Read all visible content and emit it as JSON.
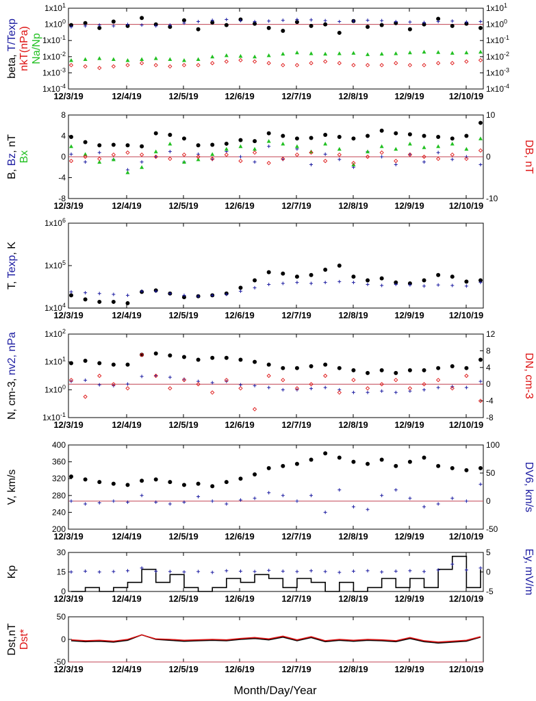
{
  "figure": {
    "xlabel": "Month/Day/Year",
    "x_tick_labels": [
      "12/3/19",
      "12/4/19",
      "12/5/19",
      "12/6/19",
      "12/7/19",
      "12/8/19",
      "12/9/19",
      "12/10/19"
    ],
    "colors": {
      "black": "#000000",
      "blue": "#1a1aa0",
      "red": "#dd1111",
      "green": "#22c022",
      "zero_line": "#c04050"
    }
  },
  "chart_data": [
    {
      "type": "scatter",
      "id": "beta",
      "scale": "log",
      "ylim": [
        0.0001,
        10
      ],
      "ylabel_left": [
        {
          "text": "beta, ",
          "color": "#000000"
        },
        {
          "text": "T/Texp",
          "color": "#1a1aa0"
        }
      ],
      "ylabel_left2": [
        {
          "text": "nkT(nPa)",
          "color": "#dd1111"
        }
      ],
      "ylabel_left3": [
        {
          "text": "Na/Np",
          "color": "#22c022"
        }
      ],
      "y_tick_labels_left": [
        "1x10-4",
        "1x10-3",
        "1x10-2",
        "1x10-1",
        "1x100",
        "1x101"
      ],
      "y_tick_labels_right": [
        "1x10-4",
        "1x10-3",
        "1x10-2",
        "1x10-1",
        "1x100",
        "1x101"
      ],
      "reference_line": 1,
      "series": [
        {
          "name": "beta",
          "marker": "dot",
          "color": "#000000",
          "values": [
            0.9,
            1.2,
            0.6,
            1.5,
            0.8,
            2.5,
            1.0,
            0.7,
            1.8,
            0.5,
            1.3,
            0.9,
            2.0,
            1.1,
            0.6,
            0.4,
            1.4,
            0.8,
            1.0,
            0.3,
            1.6,
            0.7,
            0.9,
            1.2,
            0.5,
            1.0,
            2.2,
            0.8,
            1.1,
            0.6
          ]
        },
        {
          "name": "T/Texp",
          "marker": "plus",
          "color": "#1a1aa0",
          "values": [
            0.7,
            0.8,
            0.9,
            0.8,
            1.0,
            0.9,
            0.8,
            0.9,
            1.2,
            1.5,
            1.8,
            2.0,
            1.7,
            1.5,
            1.6,
            1.8,
            2.0,
            1.9,
            1.7,
            1.5,
            1.6,
            1.8,
            1.7,
            1.5,
            1.4,
            1.3,
            1.5,
            1.6,
            1.4,
            1.5
          ]
        },
        {
          "name": "nkT(nPa)",
          "marker": "diamond",
          "color": "#dd1111",
          "values": [
            0.003,
            0.0025,
            0.002,
            0.0025,
            0.003,
            0.004,
            0.003,
            0.0025,
            0.003,
            0.003,
            0.004,
            0.005,
            0.006,
            0.005,
            0.004,
            0.003,
            0.003,
            0.004,
            0.005,
            0.004,
            0.003,
            0.003,
            0.003,
            0.004,
            0.003,
            0.003,
            0.004,
            0.004,
            0.005,
            0.006
          ]
        },
        {
          "name": "Na/Np",
          "marker": "triangle",
          "color": "#22c022",
          "values": [
            0.006,
            0.007,
            0.008,
            0.007,
            0.006,
            0.007,
            0.008,
            0.007,
            0.006,
            0.007,
            0.01,
            0.012,
            0.011,
            0.01,
            0.012,
            0.015,
            0.018,
            0.016,
            0.015,
            0.016,
            0.017,
            0.014,
            0.015,
            0.016,
            0.018,
            0.02,
            0.019,
            0.017,
            0.018,
            0.02
          ]
        }
      ]
    },
    {
      "type": "scatter",
      "id": "mag",
      "scale": "linear",
      "ylim": [
        -8,
        8
      ],
      "ylim_right": [
        -10,
        10
      ],
      "ylabel_left": [
        {
          "text": "B, ",
          "color": "#000000"
        },
        {
          "text": "Bz",
          "color": "#1a1aa0"
        },
        {
          "text": ", nT",
          "color": "#000000"
        }
      ],
      "ylabel_left2": [
        {
          "text": "Bx",
          "color": "#22c022"
        }
      ],
      "ylabel_right": [
        {
          "text": "DB, nT",
          "color": "#dd1111"
        }
      ],
      "y_tick_labels_left": [
        "-8",
        "-4",
        "0",
        "4",
        "8"
      ],
      "y_tick_labels_right": [
        "-10",
        "0",
        "10"
      ],
      "reference_line": 0,
      "series": [
        {
          "name": "B",
          "marker": "dot",
          "color": "#000000",
          "values": [
            3.8,
            2.8,
            2.2,
            2.3,
            2.2,
            2.0,
            4.5,
            4.2,
            3.5,
            2.2,
            2.3,
            2.5,
            3.2,
            3.0,
            4.5,
            4.0,
            3.5,
            3.6,
            4.2,
            3.8,
            3.5,
            4.0,
            5.0,
            4.5,
            4.3,
            4.0,
            3.8,
            3.5,
            4.0,
            6.5
          ]
        },
        {
          "name": "Bz",
          "marker": "plus",
          "color": "#1a1aa0",
          "values": [
            0.5,
            -1.0,
            0.8,
            -0.5,
            -2.5,
            -1.0,
            0.0,
            1.0,
            -1.0,
            0.5,
            -0.5,
            1.0,
            0.0,
            -1.0,
            2.0,
            -0.5,
            1.5,
            -1.5,
            0.5,
            -0.5,
            -2.0,
            1.0,
            0.0,
            -1.5,
            0.5,
            -1.0,
            0.8,
            -0.5,
            0.0,
            -1.5
          ]
        },
        {
          "name": "Bx",
          "marker": "triangle",
          "color": "#22c022",
          "values": [
            2.0,
            0.5,
            -1.0,
            -0.5,
            -3.0,
            -2.0,
            1.0,
            2.5,
            -1.0,
            -0.5,
            0.5,
            1.5,
            2.0,
            1.5,
            3.0,
            2.5,
            2.0,
            1.0,
            2.5,
            1.5,
            -1.5,
            1.0,
            2.0,
            1.5,
            2.5,
            1.8,
            2.0,
            2.5,
            1.5,
            3.5
          ]
        },
        {
          "name": "DB",
          "marker": "diamond",
          "color": "#dd1111",
          "values": [
            -1.0,
            0.0,
            -0.5,
            0.5,
            1.0,
            0.5,
            0.0,
            -0.5,
            0.5,
            0.0,
            -0.5,
            0.5,
            -1.0,
            1.0,
            -1.5,
            -0.5,
            0.5,
            1.0,
            -1.0,
            0.5,
            -1.5,
            0.0,
            1.0,
            -1.0,
            0.5,
            0.0,
            -0.5,
            0.5,
            -0.5,
            1.5
          ]
        }
      ]
    },
    {
      "type": "scatter",
      "id": "temp",
      "scale": "log",
      "ylim": [
        10000,
        1000000
      ],
      "ylabel_left": [
        {
          "text": "T, ",
          "color": "#000000"
        },
        {
          "text": "Texp",
          "color": "#1a1aa0"
        },
        {
          "text": ", K",
          "color": "#000000"
        }
      ],
      "y_tick_labels_left": [
        "1x104",
        "1x105",
        "1x106"
      ],
      "series": [
        {
          "name": "T",
          "marker": "dot",
          "color": "#000000",
          "values": [
            20000,
            16000,
            14000,
            14000,
            13000,
            24000,
            26000,
            22000,
            18000,
            19000,
            20000,
            22000,
            30000,
            45000,
            70000,
            65000,
            55000,
            60000,
            80000,
            100000,
            55000,
            45000,
            50000,
            40000,
            38000,
            45000,
            60000,
            55000,
            42000,
            45000
          ]
        },
        {
          "name": "Texp",
          "marker": "plus",
          "color": "#1a1aa0",
          "values": [
            24000,
            23000,
            22000,
            21000,
            20000,
            25000,
            25000,
            22000,
            20000,
            19000,
            20000,
            21000,
            25000,
            30000,
            36000,
            38000,
            40000,
            38000,
            40000,
            42000,
            40000,
            36000,
            34000,
            36000,
            35000,
            33000,
            35000,
            34000,
            33000,
            40000
          ]
        }
      ]
    },
    {
      "type": "scatter",
      "id": "density",
      "scale": "log",
      "ylim": [
        0.1,
        100
      ],
      "ylim_right": [
        -8,
        12
      ],
      "ylabel_left": [
        {
          "text": "N, cm-3, ",
          "color": "#000000"
        },
        {
          "text": "nv2, nPa",
          "color": "#1a1aa0"
        }
      ],
      "ylabel_right": [
        {
          "text": "DN, cm-3",
          "color": "#dd1111"
        }
      ],
      "y_tick_labels_left": [
        "1x10-1",
        "1x100",
        "1x101",
        "1x102"
      ],
      "y_tick_labels_right": [
        "-8",
        "-4",
        "0",
        "4",
        "8",
        "12"
      ],
      "reference_line_right": 0,
      "series": [
        {
          "name": "N",
          "marker": "dot",
          "color": "#000000",
          "values": [
            9,
            11,
            9,
            8,
            8,
            18,
            20,
            17,
            15,
            12,
            14,
            14,
            12,
            10,
            8,
            6,
            6,
            7,
            8,
            6,
            5,
            4,
            5,
            4,
            5,
            5,
            6,
            7,
            6,
            12
          ]
        },
        {
          "name": "nv2",
          "marker": "plus",
          "color": "#1a1aa0",
          "values": [
            2,
            2.2,
            1.5,
            1.4,
            1.6,
            3,
            3.2,
            2.8,
            2.4,
            2,
            1.8,
            2.0,
            1.5,
            1.4,
            1.2,
            1.0,
            1.0,
            1.1,
            1.2,
            1.0,
            0.8,
            0.8,
            0.9,
            0.8,
            0.9,
            1.0,
            1.2,
            1.3,
            1.2,
            2.0
          ]
        },
        {
          "name": "DN",
          "marker": "diamond",
          "color": "#dd1111",
          "values": [
            1,
            -3,
            2,
            0,
            -1,
            7,
            2,
            -1,
            1,
            0,
            -2,
            1,
            -1,
            -6,
            2,
            1,
            -1,
            0,
            2,
            -2,
            1,
            -1,
            0,
            1,
            -1,
            0,
            1,
            -1,
            2,
            -4
          ]
        }
      ]
    },
    {
      "type": "scatter",
      "id": "speed",
      "scale": "linear",
      "ylim": [
        200,
        400
      ],
      "ylim_right": [
        -50,
        100
      ],
      "ylabel_left": [
        {
          "text": "V, km/s",
          "color": "#000000"
        }
      ],
      "ylabel_right": [
        {
          "text": "DV6, km/s",
          "color": "#1a1aa0"
        }
      ],
      "y_tick_labels_left": [
        "200",
        "240",
        "280",
        "320",
        "360",
        "400"
      ],
      "y_tick_labels_right": [
        "-50",
        "0",
        "50",
        "100"
      ],
      "reference_line_right": 0,
      "series": [
        {
          "name": "V",
          "marker": "dot",
          "color": "#000000",
          "values": [
            325,
            318,
            312,
            308,
            305,
            315,
            318,
            312,
            305,
            308,
            302,
            312,
            320,
            330,
            345,
            350,
            355,
            365,
            380,
            370,
            360,
            355,
            365,
            350,
            360,
            370,
            350,
            345,
            340,
            345
          ]
        },
        {
          "name": "DV6",
          "marker": "plus",
          "color": "#1a1aa0",
          "values": [
            0,
            -5,
            -3,
            0,
            -2,
            10,
            -2,
            -5,
            -2,
            8,
            0,
            -5,
            2,
            5,
            15,
            10,
            0,
            10,
            -20,
            20,
            -10,
            -15,
            10,
            20,
            5,
            -10,
            -5,
            5,
            0,
            30
          ]
        }
      ]
    },
    {
      "type": "line",
      "id": "kp",
      "scale": "linear",
      "ylim": [
        0,
        30
      ],
      "ylim_right": [
        -5,
        5
      ],
      "ylabel_left": [
        {
          "text": "Kp",
          "color": "#000000"
        }
      ],
      "ylabel_right": [
        {
          "text": "Ey, mV/m",
          "color": "#1a1aa0"
        }
      ],
      "y_tick_labels_left": [
        "0",
        "15",
        "30"
      ],
      "y_tick_labels_right": [
        "-5",
        "0",
        "5"
      ],
      "series": [
        {
          "name": "Kp",
          "marker": "step",
          "color": "#000000",
          "values": [
            0,
            3,
            0,
            3,
            7,
            17,
            7,
            13,
            3,
            0,
            3,
            10,
            7,
            13,
            10,
            3,
            10,
            7,
            0,
            7,
            0,
            3,
            10,
            3,
            10,
            3,
            17,
            27,
            3,
            17
          ]
        },
        {
          "name": "Ey",
          "marker": "plus",
          "color": "#1a1aa0",
          "values": [
            0,
            0.2,
            0,
            0.1,
            0.3,
            1.0,
            0.2,
            0.1,
            0,
            0.1,
            -0.1,
            0.3,
            0.2,
            0.1,
            0.4,
            0.2,
            0.1,
            0.3,
            0.1,
            -0.1,
            0.2,
            0.3,
            0,
            0.2,
            0.3,
            0.1,
            0.5,
            2.0,
            0.5,
            1.0
          ]
        }
      ]
    },
    {
      "type": "line",
      "id": "dst",
      "scale": "linear",
      "ylim": [
        -50,
        50
      ],
      "ylabel_left": [
        {
          "text": "Dst,nT",
          "color": "#000000"
        }
      ],
      "ylabel_left2": [
        {
          "text": "Dst*",
          "color": "#dd1111"
        }
      ],
      "y_tick_labels_left": [
        "-50",
        "0",
        "50"
      ],
      "reference_line": -50,
      "series": [
        {
          "name": "Dst",
          "marker": "line",
          "color": "#000000",
          "values": [
            -3,
            -5,
            -4,
            -6,
            -2,
            10,
            0,
            -2,
            -4,
            -3,
            -2,
            -3,
            0,
            2,
            -1,
            5,
            -3,
            4,
            -5,
            -2,
            -4,
            -2,
            -3,
            -5,
            2,
            -5,
            -8,
            -6,
            -4,
            5
          ]
        },
        {
          "name": "Dst*",
          "marker": "line",
          "color": "#dd1111",
          "values": [
            -1,
            -3,
            -2,
            -4,
            0,
            10,
            1,
            0,
            -2,
            -1,
            0,
            -1,
            2,
            4,
            1,
            7,
            -1,
            6,
            -3,
            0,
            -2,
            0,
            -1,
            -3,
            4,
            -3,
            -6,
            -4,
            -2,
            6
          ]
        }
      ]
    }
  ]
}
